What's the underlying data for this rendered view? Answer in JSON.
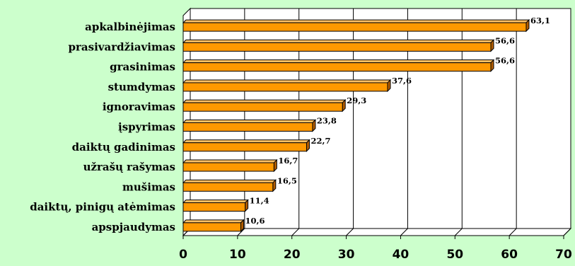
{
  "chart_data": {
    "type": "bar",
    "orientation": "horizontal",
    "categories": [
      "apkalbinėjimas",
      "prasivardžiavimas",
      "grasinimas",
      "stumdymas",
      "ignoravimas",
      "įspyrimas",
      "daiktų gadinimas",
      "užrašų rašymas",
      "mušimas",
      "daiktų, pinigų atėmimas",
      "apspjaudymas"
    ],
    "values": [
      63.1,
      56.6,
      56.6,
      37.6,
      29.3,
      23.8,
      22.7,
      16.7,
      16.5,
      11.4,
      10.6
    ],
    "value_labels": [
      "63,1",
      "56,6",
      "56,6",
      "37,6",
      "29,3",
      "23,8",
      "22,7",
      "16,7",
      "16,5",
      "11,4",
      "10,6"
    ],
    "xlim": [
      0,
      70
    ],
    "xticks": [
      0,
      10,
      20,
      30,
      40,
      50,
      60,
      70
    ],
    "xtick_labels": [
      "0",
      "10",
      "20",
      "30",
      "40",
      "50",
      "60",
      "70"
    ],
    "title": "",
    "xlabel": "",
    "ylabel": "",
    "grid": "vertical",
    "legend": "none",
    "colors": {
      "background": "#ccffcc",
      "plot_back": "#ffffff",
      "bar_face": "#ff9900",
      "bar_side": "#b35e00",
      "bar_top": "#ffc266",
      "grid": "#000000"
    }
  }
}
